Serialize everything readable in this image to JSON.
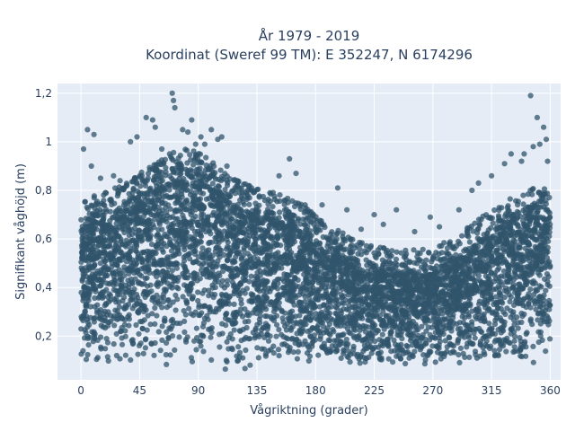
{
  "chart_data": {
    "type": "scatter",
    "title": "År 1979 - 2019",
    "subtitle": "Koordinat (Sweref 99 TM): E 352247, N 6174296",
    "xlabel": "Vågriktning (grader)",
    "ylabel": "Signifikant våghöjd (m)",
    "xlim": [
      -18,
      368
    ],
    "ylim": [
      0.02,
      1.24
    ],
    "xticks": [
      0,
      45,
      90,
      135,
      180,
      225,
      270,
      315,
      360
    ],
    "xtick_labels": [
      "0",
      "45",
      "90",
      "135",
      "180",
      "225",
      "270",
      "315",
      "360"
    ],
    "yticks": [
      0.2,
      0.4,
      0.6,
      0.8,
      1.0,
      1.2
    ],
    "ytick_labels": [
      "0,2",
      "0,4",
      "0,6",
      "0,8",
      "1",
      "1,2"
    ],
    "grid": true,
    "marker_color": "#30546b",
    "background": "#e5ecf6",
    "envelope": {
      "x": [
        0,
        10,
        20,
        30,
        40,
        50,
        60,
        70,
        80,
        90,
        100,
        110,
        120,
        130,
        140,
        150,
        160,
        170,
        180,
        190,
        200,
        210,
        220,
        230,
        240,
        250,
        260,
        270,
        280,
        290,
        300,
        310,
        320,
        330,
        340,
        350,
        360
      ],
      "upper": [
        0.65,
        0.68,
        0.7,
        0.72,
        0.75,
        0.79,
        0.82,
        0.86,
        0.88,
        0.86,
        0.82,
        0.78,
        0.74,
        0.72,
        0.7,
        0.69,
        0.67,
        0.64,
        0.6,
        0.57,
        0.53,
        0.5,
        0.48,
        0.47,
        0.46,
        0.46,
        0.46,
        0.47,
        0.49,
        0.52,
        0.56,
        0.6,
        0.64,
        0.67,
        0.7,
        0.72,
        0.7
      ],
      "lower": [
        0.09,
        0.08,
        0.08,
        0.07,
        0.07,
        0.07,
        0.07,
        0.06,
        0.06,
        0.06,
        0.06,
        0.06,
        0.06,
        0.06,
        0.07,
        0.07,
        0.07,
        0.07,
        0.08,
        0.08,
        0.08,
        0.08,
        0.08,
        0.08,
        0.08,
        0.08,
        0.08,
        0.08,
        0.08,
        0.08,
        0.08,
        0.08,
        0.08,
        0.07,
        0.07,
        0.08,
        0.09
      ]
    },
    "outliers": [
      {
        "x": 2,
        "y": 0.97
      },
      {
        "x": 5,
        "y": 1.05
      },
      {
        "x": 10,
        "y": 1.03
      },
      {
        "x": 8,
        "y": 0.9
      },
      {
        "x": 15,
        "y": 0.85
      },
      {
        "x": 25,
        "y": 0.86
      },
      {
        "x": 30,
        "y": 0.84
      },
      {
        "x": 38,
        "y": 1.0
      },
      {
        "x": 43,
        "y": 1.02
      },
      {
        "x": 50,
        "y": 1.1
      },
      {
        "x": 55,
        "y": 1.09
      },
      {
        "x": 57,
        "y": 1.06
      },
      {
        "x": 62,
        "y": 0.97
      },
      {
        "x": 68,
        "y": 0.95
      },
      {
        "x": 70,
        "y": 1.2
      },
      {
        "x": 71,
        "y": 1.17
      },
      {
        "x": 72,
        "y": 1.14
      },
      {
        "x": 78,
        "y": 1.05
      },
      {
        "x": 82,
        "y": 1.04
      },
      {
        "x": 85,
        "y": 1.09
      },
      {
        "x": 88,
        "y": 0.99
      },
      {
        "x": 92,
        "y": 1.02
      },
      {
        "x": 95,
        "y": 0.99
      },
      {
        "x": 100,
        "y": 1.05
      },
      {
        "x": 105,
        "y": 1.01
      },
      {
        "x": 108,
        "y": 1.02
      },
      {
        "x": 112,
        "y": 0.9
      },
      {
        "x": 120,
        "y": 0.84
      },
      {
        "x": 128,
        "y": 0.8
      },
      {
        "x": 145,
        "y": 0.79
      },
      {
        "x": 152,
        "y": 0.86
      },
      {
        "x": 160,
        "y": 0.93
      },
      {
        "x": 165,
        "y": 0.87
      },
      {
        "x": 172,
        "y": 0.74
      },
      {
        "x": 185,
        "y": 0.74
      },
      {
        "x": 197,
        "y": 0.81
      },
      {
        "x": 204,
        "y": 0.72
      },
      {
        "x": 215,
        "y": 0.64
      },
      {
        "x": 225,
        "y": 0.7
      },
      {
        "x": 232,
        "y": 0.66
      },
      {
        "x": 242,
        "y": 0.72
      },
      {
        "x": 256,
        "y": 0.63
      },
      {
        "x": 268,
        "y": 0.69
      },
      {
        "x": 275,
        "y": 0.65
      },
      {
        "x": 290,
        "y": 0.72
      },
      {
        "x": 300,
        "y": 0.8
      },
      {
        "x": 305,
        "y": 0.83
      },
      {
        "x": 315,
        "y": 0.86
      },
      {
        "x": 325,
        "y": 0.91
      },
      {
        "x": 330,
        "y": 0.95
      },
      {
        "x": 338,
        "y": 0.92
      },
      {
        "x": 340,
        "y": 0.95
      },
      {
        "x": 345,
        "y": 1.19
      },
      {
        "x": 347,
        "y": 0.98
      },
      {
        "x": 350,
        "y": 1.1
      },
      {
        "x": 352,
        "y": 0.99
      },
      {
        "x": 355,
        "y": 1.06
      },
      {
        "x": 357,
        "y": 1.01
      },
      {
        "x": 358,
        "y": 0.92
      }
    ]
  }
}
